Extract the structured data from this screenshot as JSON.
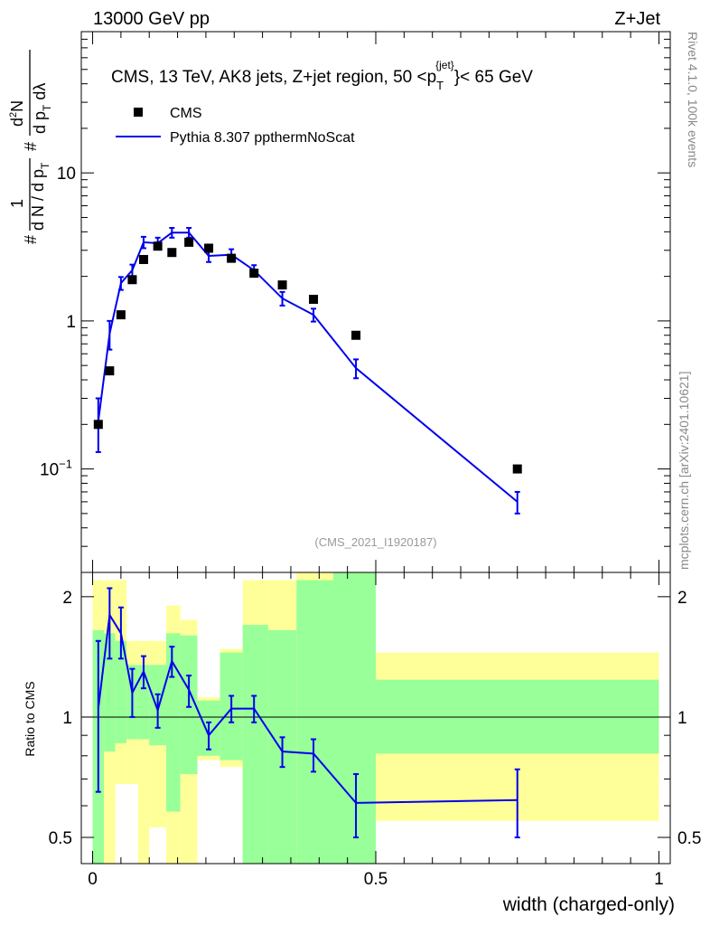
{
  "header": {
    "left": "13000 GeV pp",
    "right": "Z+Jet"
  },
  "side_labels": {
    "top": "Rivet 4.1.0,  100k events",
    "bottom": "mcplots.cern.ch [arXiv:2401.10621]"
  },
  "reference": "(CMS_2021_I1920187)",
  "chart_data": [
    {
      "type": "scatter",
      "panel": "main",
      "title": "CMS, 13 TeV, AK8 jets, Z+jet region, 50 <p_T^{jet}< 65 GeV",
      "title_parts": {
        "prefix": "CMS, 13 TeV, AK8 jets, Z+jet region, 50 <p",
        "sup": "{jet}",
        "sub": "T",
        "suffix": "}< 65 GeV"
      },
      "ylabel": "#1/dN/dp_T # d^2N/dp_T dλ",
      "ylabel_parts": {
        "hash": "#",
        "one": "1",
        "dn": "d N / d p",
        "t": "T",
        "d2n": "d",
        "two": "2",
        "n": "N",
        "dpdl": "d p",
        "dl": " dλ"
      },
      "yscale": "log",
      "ylim": [
        0.02,
        90
      ],
      "xlim": [
        -0.02,
        1.02
      ],
      "yticks": [
        {
          "value": 0.1,
          "label": "10",
          "exp": "−1"
        },
        {
          "value": 1,
          "label": "1",
          "exp": ""
        },
        {
          "value": 10,
          "label": "10",
          "exp": ""
        }
      ],
      "legend": {
        "position": "top-left",
        "entries": [
          "CMS",
          "Pythia 8.307 ppthermNoScat"
        ]
      },
      "series": [
        {
          "name": "CMS",
          "style": "markers",
          "color": "#000000",
          "x": [
            0.01,
            0.03,
            0.05,
            0.07,
            0.09,
            0.115,
            0.14,
            0.17,
            0.205,
            0.245,
            0.285,
            0.335,
            0.39,
            0.465,
            0.75
          ],
          "y": [
            0.2,
            0.46,
            1.1,
            1.9,
            2.6,
            3.2,
            2.9,
            3.4,
            3.1,
            2.65,
            2.1,
            1.75,
            1.4,
            0.8,
            0.1
          ]
        },
        {
          "name": "Pythia 8.307 ppthermNoScat",
          "style": "line",
          "color": "#0000ee",
          "x": [
            0.01,
            0.03,
            0.05,
            0.07,
            0.09,
            0.115,
            0.14,
            0.17,
            0.205,
            0.245,
            0.285,
            0.335,
            0.39,
            0.465,
            0.75
          ],
          "y": [
            0.21,
            0.82,
            1.8,
            2.2,
            3.4,
            3.35,
            3.95,
            3.95,
            2.75,
            2.8,
            2.2,
            1.42,
            1.1,
            0.48,
            0.06
          ],
          "ylow": [
            0.13,
            0.64,
            1.62,
            2.0,
            3.1,
            3.05,
            3.65,
            3.65,
            2.5,
            2.55,
            2.02,
            1.27,
            0.99,
            0.41,
            0.05
          ],
          "yhigh": [
            0.3,
            1.0,
            1.98,
            2.4,
            3.7,
            3.65,
            4.25,
            4.25,
            3.0,
            3.05,
            2.38,
            1.57,
            1.21,
            0.55,
            0.07
          ]
        }
      ]
    },
    {
      "type": "line",
      "panel": "ratio",
      "ylabel": "Ratio to CMS",
      "yscale": "log",
      "ylim": [
        0.43,
        2.3
      ],
      "xlim": [
        -0.02,
        1.02
      ],
      "xlabel": "width (charged-only)",
      "xticks": [
        {
          "value": 0,
          "label": "0"
        },
        {
          "value": 0.5,
          "label": "0.5"
        },
        {
          "value": 1,
          "label": "1"
        }
      ],
      "yticks": [
        {
          "value": 0.5,
          "label": "0.5"
        },
        {
          "value": 1,
          "label": "1"
        },
        {
          "value": 2,
          "label": "2"
        }
      ],
      "reference_line": 1,
      "bands": [
        {
          "x0": 0.0,
          "x1": 0.02,
          "y_lo": 0.4,
          "y_hi": 2.2,
          "g_lo": 0.4,
          "g_hi": 1.65
        },
        {
          "x0": 0.02,
          "x1": 0.04,
          "y_lo": 0.4,
          "y_hi": 2.2,
          "g_lo": 0.82,
          "g_hi": 1.62
        },
        {
          "x0": 0.04,
          "x1": 0.06,
          "y_lo": 0.68,
          "y_hi": 2.2,
          "g_lo": 0.86,
          "g_hi": 1.55
        },
        {
          "x0": 0.06,
          "x1": 0.08,
          "y_lo": 0.68,
          "y_hi": 1.55,
          "g_lo": 0.88,
          "g_hi": 1.35
        },
        {
          "x0": 0.08,
          "x1": 0.1,
          "y_lo": 0.4,
          "y_hi": 1.55,
          "g_lo": 0.88,
          "g_hi": 1.35
        },
        {
          "x0": 0.1,
          "x1": 0.13,
          "y_lo": 0.53,
          "y_hi": 1.55,
          "g_lo": 0.85,
          "g_hi": 1.35
        },
        {
          "x0": 0.13,
          "x1": 0.155,
          "y_lo": 0.4,
          "y_hi": 1.9,
          "g_lo": 0.58,
          "g_hi": 1.62
        },
        {
          "x0": 0.155,
          "x1": 0.185,
          "y_lo": 0.4,
          "y_hi": 1.75,
          "g_lo": 0.72,
          "g_hi": 1.6
        },
        {
          "x0": 0.185,
          "x1": 0.225,
          "y_lo": 0.78,
          "y_hi": 1.12,
          "g_lo": 0.8,
          "g_hi": 1.1
        },
        {
          "x0": 0.225,
          "x1": 0.265,
          "y_lo": 0.75,
          "y_hi": 1.48,
          "g_lo": 0.78,
          "g_hi": 1.45
        },
        {
          "x0": 0.265,
          "x1": 0.31,
          "y_lo": 0.4,
          "y_hi": 2.2,
          "g_lo": 0.4,
          "g_hi": 1.7
        },
        {
          "x0": 0.31,
          "x1": 0.36,
          "y_lo": 0.4,
          "y_hi": 2.2,
          "g_lo": 0.4,
          "g_hi": 1.65
        },
        {
          "x0": 0.36,
          "x1": 0.425,
          "y_lo": 0.4,
          "y_hi": 2.4,
          "g_lo": 0.4,
          "g_hi": 2.2
        },
        {
          "x0": 0.425,
          "x1": 0.5,
          "y_lo": 0.4,
          "y_hi": 2.4,
          "g_lo": 0.4,
          "g_hi": 2.4
        },
        {
          "x0": 0.5,
          "x1": 1.0,
          "y_lo": 0.55,
          "y_hi": 1.45,
          "g_lo": 0.81,
          "g_hi": 1.24
        }
      ],
      "series": [
        {
          "name": "Pythia 8.307 ppthermNoScat / CMS",
          "color": "#0000ee",
          "x": [
            0.01,
            0.03,
            0.05,
            0.07,
            0.09,
            0.115,
            0.14,
            0.17,
            0.205,
            0.245,
            0.285,
            0.335,
            0.39,
            0.465,
            0.75
          ],
          "y": [
            1.05,
            1.8,
            1.62,
            1.15,
            1.3,
            1.04,
            1.38,
            1.17,
            0.9,
            1.05,
            1.05,
            0.82,
            0.81,
            0.61,
            0.62
          ],
          "ylow": [
            0.65,
            1.4,
            1.4,
            1.0,
            1.18,
            0.94,
            1.26,
            1.06,
            0.83,
            0.97,
            0.97,
            0.75,
            0.73,
            0.5,
            0.5
          ],
          "yhigh": [
            1.55,
            2.1,
            1.88,
            1.32,
            1.42,
            1.14,
            1.5,
            1.27,
            0.97,
            1.13,
            1.13,
            0.89,
            0.88,
            0.72,
            0.74
          ]
        }
      ]
    }
  ]
}
